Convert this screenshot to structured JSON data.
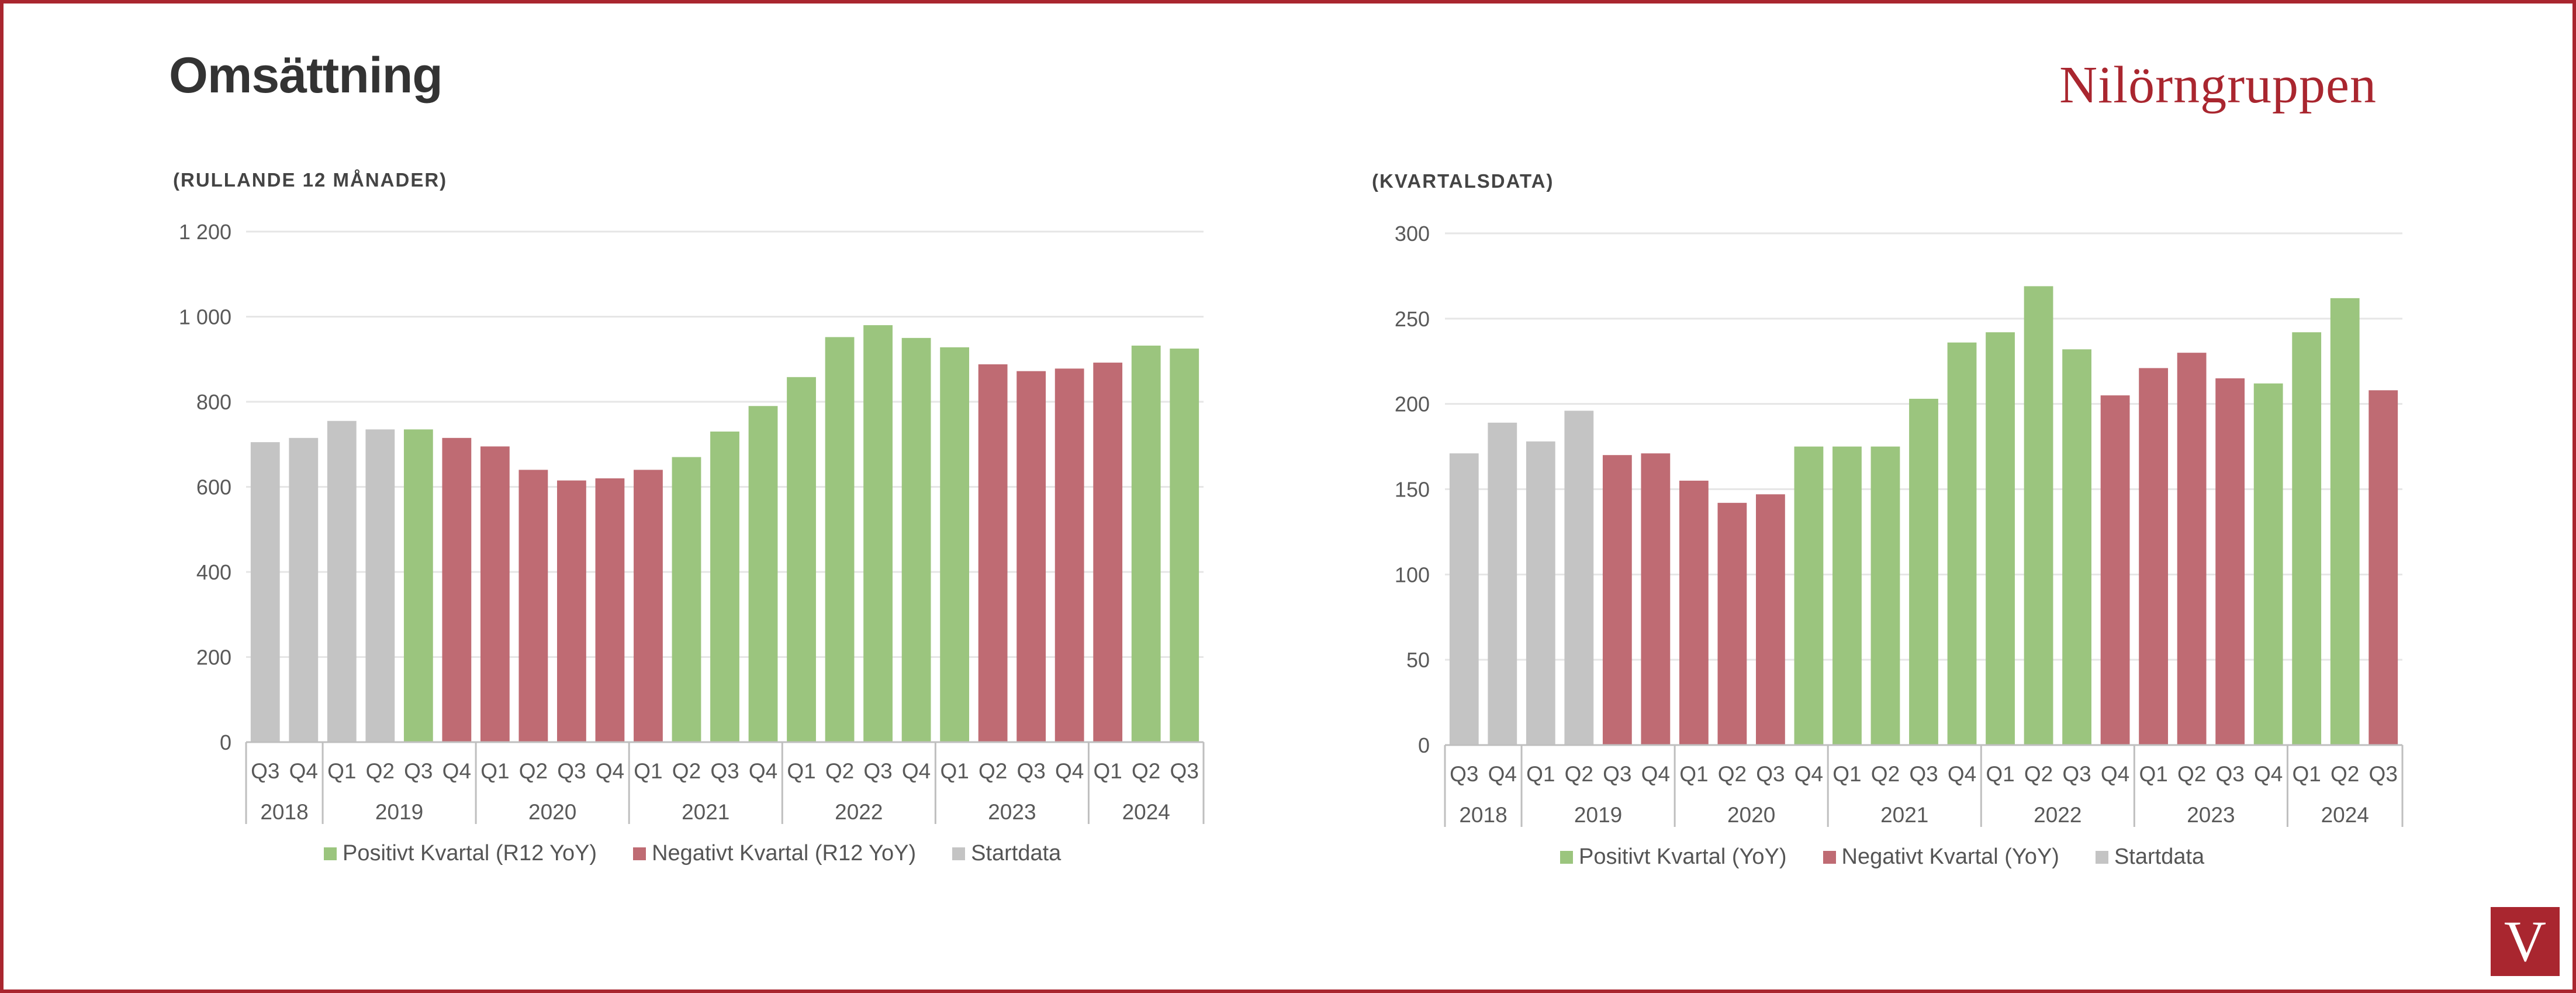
{
  "page": {
    "title": "Omsättning",
    "brand": "Nilörngruppen",
    "logo_letter": "V"
  },
  "colors": {
    "positive": "#9bc57e",
    "negative": "#bf6b73",
    "start": "#c4c4c4",
    "accent": "#a9262f",
    "grid": "#e6e6e6",
    "axis_text": "#595959"
  },
  "chart_data": [
    {
      "type": "bar",
      "subtitle": "(RULLANDE 12 MÅNADER)",
      "ylim": [
        0,
        1200
      ],
      "yticks": [
        0,
        200,
        400,
        600,
        800,
        1000,
        1200
      ],
      "ytick_labels": [
        "0",
        "200",
        "400",
        "600",
        "800",
        "1 000",
        "1 200"
      ],
      "categories": [
        "Q3",
        "Q4",
        "Q1",
        "Q2",
        "Q3",
        "Q4",
        "Q1",
        "Q2",
        "Q3",
        "Q4",
        "Q1",
        "Q2",
        "Q3",
        "Q4",
        "Q1",
        "Q2",
        "Q3",
        "Q4",
        "Q1",
        "Q2",
        "Q3",
        "Q4",
        "Q1",
        "Q2",
        "Q3"
      ],
      "years": [
        {
          "label": "2018",
          "count": 2
        },
        {
          "label": "2019",
          "count": 4
        },
        {
          "label": "2020",
          "count": 4
        },
        {
          "label": "2021",
          "count": 4
        },
        {
          "label": "2022",
          "count": 4
        },
        {
          "label": "2023",
          "count": 4
        },
        {
          "label": "2024",
          "count": 3
        }
      ],
      "values": [
        705,
        715,
        755,
        735,
        735,
        715,
        695,
        640,
        615,
        620,
        640,
        670,
        730,
        790,
        858,
        952,
        980,
        950,
        928,
        888,
        872,
        878,
        892,
        932,
        925
      ],
      "types": [
        "start",
        "start",
        "start",
        "start",
        "pos",
        "neg",
        "neg",
        "neg",
        "neg",
        "neg",
        "neg",
        "pos",
        "pos",
        "pos",
        "pos",
        "pos",
        "pos",
        "pos",
        "pos",
        "neg",
        "neg",
        "neg",
        "neg",
        "pos",
        "pos"
      ],
      "legend": [
        "Positivt Kvartal (R12 YoY)",
        "Negativt Kvartal (R12 YoY)",
        "Startdata"
      ]
    },
    {
      "type": "bar",
      "subtitle": "(KVARTALSDATA)",
      "ylim": [
        0,
        300
      ],
      "yticks": [
        0,
        50,
        100,
        150,
        200,
        250,
        300
      ],
      "ytick_labels": [
        "0",
        "50",
        "100",
        "150",
        "200",
        "250",
        "300"
      ],
      "categories": [
        "Q3",
        "Q4",
        "Q1",
        "Q2",
        "Q3",
        "Q4",
        "Q1",
        "Q2",
        "Q3",
        "Q4",
        "Q1",
        "Q2",
        "Q3",
        "Q4",
        "Q1",
        "Q2",
        "Q3",
        "Q4",
        "Q1",
        "Q2",
        "Q3",
        "Q4",
        "Q1",
        "Q2",
        "Q3"
      ],
      "years": [
        {
          "label": "2018",
          "count": 2
        },
        {
          "label": "2019",
          "count": 4
        },
        {
          "label": "2020",
          "count": 4
        },
        {
          "label": "2021",
          "count": 4
        },
        {
          "label": "2022",
          "count": 4
        },
        {
          "label": "2023",
          "count": 4
        },
        {
          "label": "2024",
          "count": 3
        }
      ],
      "values": [
        171,
        189,
        178,
        196,
        170,
        171,
        155,
        142,
        147,
        175,
        175,
        175,
        203,
        236,
        242,
        269,
        232,
        205,
        221,
        230,
        215,
        212,
        242,
        262,
        208
      ],
      "types": [
        "start",
        "start",
        "start",
        "start",
        "neg",
        "neg",
        "neg",
        "neg",
        "neg",
        "pos",
        "pos",
        "pos",
        "pos",
        "pos",
        "pos",
        "pos",
        "pos",
        "neg",
        "neg",
        "neg",
        "neg",
        "pos",
        "pos",
        "pos",
        "neg"
      ],
      "legend": [
        "Positivt Kvartal (YoY)",
        "Negativt Kvartal (YoY)",
        "Startdata"
      ]
    }
  ]
}
